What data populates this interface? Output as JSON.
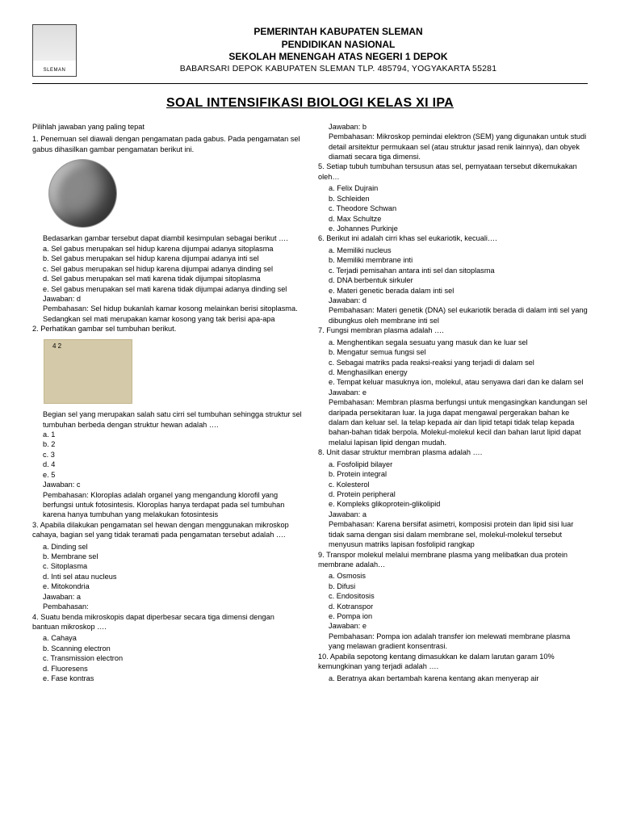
{
  "header": {
    "line1": "PEMERINTAH KABUPATEN SLEMAN",
    "line2": "PENDIDIKAN NASIONAL",
    "line3": "SEKOLAH MENENGAH ATAS NEGERI 1 DEPOK",
    "line4": "BABARSARI DEPOK KABUPATEN SLEMAN TLP. 485794, YOGYAKARTA 55281",
    "logo_label": "SLEMAN"
  },
  "title": "SOAL INTENSIFIKASI BIOLOGI KELAS XI IPA",
  "instruction": "Pilihlah jawaban yang paling tepat",
  "q1": {
    "num": "1.",
    "text": "Penemuan sel diawali dengan pengamatan pada gabus. Pada pengamatan sel gabus dihasilkan gambar pengamatan berikut ini.",
    "sub": "Bedasarkan gambar tersebut dapat diambil kesimpulan sebagai berikut ….",
    "a": "a. Sel gabus merupakan sel hidup karena dijumpai adanya sitoplasma",
    "b": "b. Sel gabus merupakan sel hidup karena dijumpai adanya inti sel",
    "c": "c. Sel gabus merupakan sel hidup karena dijumpai adanya dinding sel",
    "d": "d. Sel gabus merupakan sel mati karena tidak dijumpai sitoplasma",
    "e": "e. Sel gabus merupakan sel mati karena tidak dijumpai adanya dinding sel",
    "ans": "Jawaban: d",
    "disc": "Pembahasan: Sel hidup bukanlah kamar kosong melainkan berisi sitoplasma. Sedangkan sel mati merupakan kamar kosong yang tak berisi apa-apa"
  },
  "q2": {
    "num": "2.",
    "text": "Perhatikan gambar sel tumbuhan berikut.",
    "sub": "Begian sel yang merupakan salah satu cirri sel tumbuhan sehingga struktur sel tumbuhan berbeda dengan struktur hewan adalah ….",
    "a": "a. 1",
    "b": "b. 2",
    "c": "c. 3",
    "d": "d. 4",
    "e": "e. 5",
    "ans": "Jawaban: c",
    "disc": "Pembahasan: Kloroplas adalah organel yang mengandung klorofil yang berfungsi untuk fotosintesis. Kloroplas hanya terdapat pada sel tumbuhan karena hanya tumbuhan yang melakukan fotosintesis"
  },
  "q3": {
    "num": "3.",
    "text": " Apabila dilakukan pengamatan sel hewan dengan menggunakan mikroskop cahaya, bagian sel yang tidak teramati pada pengamatan tersebut adalah ….",
    "a": "a. Dinding sel",
    "b": "b. Membrane sel",
    "c": "c. Sitoplasma",
    "d": "d. Inti sel atau nucleus",
    "e": "e. Mitokondria",
    "ans": "Jawaban: a",
    "disc": "Pembahasan:"
  },
  "q4": {
    "num": "4.",
    "text": " Suatu benda mikroskopis dapat diperbesar secara tiga dimensi dengan bantuan mikroskop ….",
    "a": "a. Cahaya",
    "b": "b. Scanning electron",
    "c": "c. Transmission electron",
    "d": "d. Fluoresens",
    "e": "e. Fase kontras",
    "ans": "Jawaban: b",
    "disc": "Pembahasan: Mikroskop pemindai elektron (SEM) yang digunakan untuk studi detail arsitektur permukaan sel (atau struktur jasad renik lainnya), dan obyek diamati secara tiga dimensi."
  },
  "q5": {
    "num": "5.",
    "text": "Setiap tubuh tumbuhan tersusun atas sel, pernyataan tersebut dikemukakan oleh…",
    "a": "a. Felix Dujrain",
    "b": "b. Schleiden",
    "c": "c. Theodore Schwan",
    "d": "d. Max Schultze",
    "e": "e. Johannes Purkinje"
  },
  "q6": {
    "num": "6.",
    "text": "Berikut ini adalah cirri khas sel eukariotik, kecuali….",
    "a": "a. Memiliki nucleus",
    "b": "b. Memiliki membrane inti",
    "c": "c. Terjadi pemisahan antara inti sel dan sitoplasma",
    "d": "d. DNA berbentuk sirkuler",
    "e": "e. Materi genetic berada dalam inti sel",
    "ans": "Jawaban: d",
    "disc": "Pembahasan: Materi genetik (DNA) sel eukariotik berada di dalam inti sel yang dibungkus oleh membrane inti sel"
  },
  "q7": {
    "num": "7.",
    "text": "Fungsi membran plasma adalah ….",
    "a": "a. Menghentikan segala sesuatu yang masuk dan ke luar sel",
    "b": "b. Mengatur semua fungsi sel",
    "c": "c. Sebagai matriks pada reaksi-reaksi yang terjadi di dalam sel",
    "d": "d. Menghasilkan energy",
    "e": "e. Tempat keluar masuknya ion, molekul, atau senyawa dari dan ke dalam sel",
    "ans": "Jawaban: e",
    "disc": "Pembahasan: Membran plasma berfungsi untuk mengasingkan kandungan sel daripada persekitaran luar. Ia juga dapat mengawal pergerakan bahan ke dalam dan keluar sel. Ia telap kepada air dan lipid tetapi tidak telap kepada bahan-bahan tidak berpola. Molekul-molekul kecil dan bahan larut lipid dapat melalui lapisan lipid dengan mudah."
  },
  "q8": {
    "num": "8.",
    "text": "Unit dasar struktur membran plasma adalah ….",
    "a": "a. Fosfolipid bilayer",
    "b": "b. Protein integral",
    "c": "c. Kolesterol",
    "d": "d. Protein peripheral",
    "e": "e. Kompleks glikoprotein-glikolipid",
    "ans": "Jawaban: a",
    "disc": "Pembahasan: Karena bersifat asimetri, komposisi protein dan lipid sisi luar tidak sama dengan sisi dalam membrane sel, molekul-molekul tersebut menyusun matriks lapisan fosfolipid rangkap"
  },
  "q9": {
    "num": "9.",
    "text": "Transpor molekul melalui membrane plasma yang melibatkan dua protein membrane adalah…",
    "a": "a. Osmosis",
    "b": "b. Difusi",
    "c": "c. Endositosis",
    "d": "d. Kotranspor",
    "e": "e. Pompa ion",
    "ans": "Jawaban: e",
    "disc": "Pembahasan: Pompa ion adalah transfer ion melewati membrane plasma yang melawan gradient konsentrasi."
  },
  "q10": {
    "num": "10.",
    "text": "Apabila sepotong kentang dimasukkan ke dalam larutan garam 10% kemungkinan yang terjadi adalah ….",
    "a": "a. Beratnya akan bertambah karena kentang akan menyerap air"
  }
}
